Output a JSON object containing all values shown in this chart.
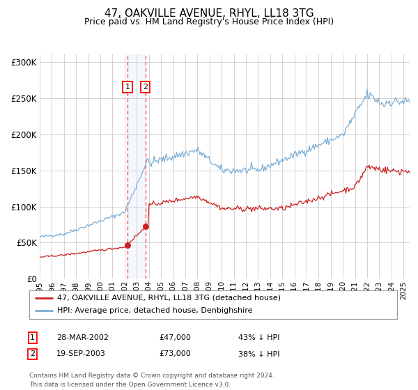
{
  "title": "47, OAKVILLE AVENUE, RHYL, LL18 3TG",
  "subtitle": "Price paid vs. HM Land Registry's House Price Index (HPI)",
  "hpi_color": "#7aadd4",
  "price_color": "#cc2222",
  "marker_color": "#cc2222",
  "background_color": "#ffffff",
  "grid_color": "#cccccc",
  "ylim": [
    0,
    310000
  ],
  "yticks": [
    0,
    50000,
    100000,
    150000,
    200000,
    250000,
    300000
  ],
  "xlim_start": 1995.0,
  "xlim_end": 2025.5,
  "purchase1": {
    "date": 2002.24,
    "price": 47000,
    "label": "1",
    "pct": "43% ↓ HPI",
    "date_str": "28-MAR-2002",
    "price_str": "£47,000"
  },
  "purchase2": {
    "date": 2003.72,
    "price": 73000,
    "label": "2",
    "pct": "38% ↓ HPI",
    "date_str": "19-SEP-2003",
    "price_str": "£73,000"
  },
  "legend_line1": "47, OAKVILLE AVENUE, RHYL, LL18 3TG (detached house)",
  "legend_line2": "HPI: Average price, detached house, Denbighshire",
  "footer": "Contains HM Land Registry data © Crown copyright and database right 2024.\nThis data is licensed under the Open Government Licence v3.0.",
  "xtick_years": [
    1995,
    1996,
    1997,
    1998,
    1999,
    2000,
    2001,
    2002,
    2003,
    2004,
    2005,
    2006,
    2007,
    2008,
    2009,
    2010,
    2011,
    2012,
    2013,
    2014,
    2015,
    2016,
    2017,
    2018,
    2019,
    2020,
    2021,
    2022,
    2023,
    2024,
    2025
  ]
}
